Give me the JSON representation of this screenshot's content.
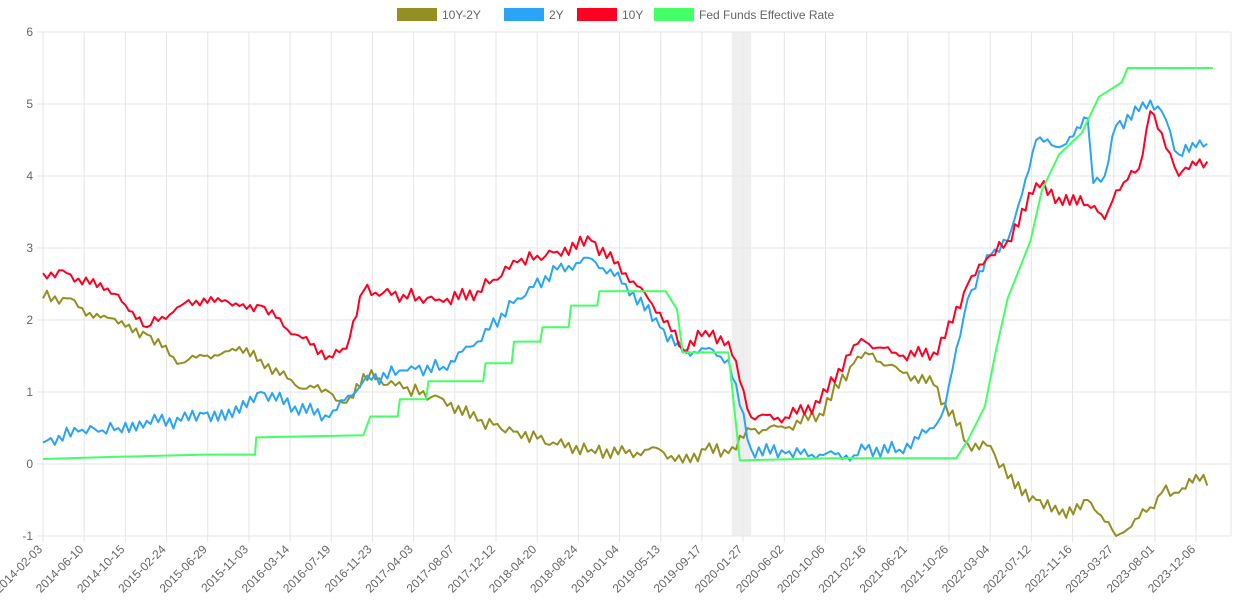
{
  "chart_data": {
    "type": "line",
    "title": "",
    "xlabel": "",
    "ylabel": "",
    "ylim": [
      -1,
      6
    ],
    "y_ticks": [
      "6",
      "5",
      "4",
      "3",
      "2",
      "1",
      "0",
      "-1"
    ],
    "x_tick_labels": [
      "2014-02-03",
      "2014-06-10",
      "2014-10-15",
      "2015-02-24",
      "2015-06-29",
      "2015-11-03",
      "2016-03-14",
      "2016-07-19",
      "2016-11-23",
      "2017-04-03",
      "2017-08-07",
      "2017-12-12",
      "2018-04-20",
      "2018-08-24",
      "2019-01-04",
      "2019-05-13",
      "2019-09-17",
      "2020-01-27",
      "2020-06-02",
      "2020-10-06",
      "2021-02-16",
      "2021-06-21",
      "2021-10-26",
      "2022-03-04",
      "2022-07-12",
      "2022-11-16",
      "2023-03-27",
      "2023-08-01",
      "2023-12-06"
    ],
    "grid": true,
    "legend_position": "top",
    "shaded_region": [
      "2020-02",
      "2020-04"
    ],
    "series": [
      {
        "name": "10Y-2Y",
        "color": "#948f22",
        "values": [
          [
            2014.09,
            2.3
          ],
          [
            2014.3,
            2.3
          ],
          [
            2014.5,
            2.1
          ],
          [
            2014.75,
            1.95
          ],
          [
            2015.0,
            1.8
          ],
          [
            2015.3,
            1.4
          ],
          [
            2015.5,
            1.5
          ],
          [
            2015.75,
            1.6
          ],
          [
            2016.0,
            1.45
          ],
          [
            2016.3,
            1.1
          ],
          [
            2016.6,
            1.0
          ],
          [
            2016.75,
            0.85
          ],
          [
            2016.9,
            1.25
          ],
          [
            2017.25,
            1.05
          ],
          [
            2017.6,
            0.9
          ],
          [
            2017.9,
            0.6
          ],
          [
            2018.25,
            0.45
          ],
          [
            2018.6,
            0.27
          ],
          [
            2018.9,
            0.2
          ],
          [
            2019.2,
            0.15
          ],
          [
            2019.5,
            0.2
          ],
          [
            2019.7,
            0.02
          ],
          [
            2019.9,
            0.2
          ],
          [
            2020.1,
            0.15
          ],
          [
            2020.3,
            0.48
          ],
          [
            2020.6,
            0.5
          ],
          [
            2020.9,
            0.7
          ],
          [
            2021.2,
            1.4
          ],
          [
            2021.3,
            1.55
          ],
          [
            2021.6,
            1.3
          ],
          [
            2021.9,
            1.1
          ],
          [
            2022.0,
            0.85
          ],
          [
            2022.2,
            0.28
          ],
          [
            2022.4,
            0.25
          ],
          [
            2022.55,
            -0.2
          ],
          [
            2022.8,
            -0.5
          ],
          [
            2023.0,
            -0.7
          ],
          [
            2023.25,
            -0.5
          ],
          [
            2023.4,
            -0.8
          ],
          [
            2023.5,
            -1.0
          ],
          [
            2023.7,
            -0.75
          ],
          [
            2023.8,
            -0.6
          ],
          [
            2023.9,
            -0.4
          ],
          [
            2024.05,
            -0.4
          ],
          [
            2024.2,
            -0.15
          ],
          [
            2024.3,
            -0.3
          ]
        ]
      },
      {
        "name": "2Y",
        "color": "#2aa4f4",
        "values": [
          [
            2014.09,
            0.3
          ],
          [
            2014.4,
            0.45
          ],
          [
            2014.75,
            0.5
          ],
          [
            2015.0,
            0.6
          ],
          [
            2015.3,
            0.6
          ],
          [
            2015.5,
            0.7
          ],
          [
            2015.75,
            0.65
          ],
          [
            2016.0,
            1.0
          ],
          [
            2016.3,
            0.8
          ],
          [
            2016.6,
            0.65
          ],
          [
            2016.9,
            1.15
          ],
          [
            2017.25,
            1.3
          ],
          [
            2017.6,
            1.35
          ],
          [
            2017.9,
            1.7
          ],
          [
            2018.25,
            2.3
          ],
          [
            2018.6,
            2.7
          ],
          [
            2018.9,
            2.85
          ],
          [
            2019.2,
            2.5
          ],
          [
            2019.5,
            1.9
          ],
          [
            2019.7,
            1.55
          ],
          [
            2019.9,
            1.6
          ],
          [
            2020.1,
            1.45
          ],
          [
            2020.3,
            0.2
          ],
          [
            2020.6,
            0.15
          ],
          [
            2020.9,
            0.13
          ],
          [
            2021.2,
            0.12
          ],
          [
            2021.3,
            0.2
          ],
          [
            2021.6,
            0.2
          ],
          [
            2021.9,
            0.5
          ],
          [
            2022.0,
            0.8
          ],
          [
            2022.2,
            2.3
          ],
          [
            2022.4,
            2.9
          ],
          [
            2022.55,
            3.1
          ],
          [
            2022.8,
            4.5
          ],
          [
            2023.0,
            4.4
          ],
          [
            2023.25,
            4.8
          ],
          [
            2023.3,
            3.9
          ],
          [
            2023.4,
            4.0
          ],
          [
            2023.5,
            4.7
          ],
          [
            2023.7,
            4.9
          ],
          [
            2023.8,
            5.05
          ],
          [
            2023.9,
            4.9
          ],
          [
            2024.05,
            4.3
          ],
          [
            2024.2,
            4.4
          ],
          [
            2024.3,
            4.45
          ]
        ]
      },
      {
        "name": "10Y",
        "color": "#ff0022",
        "values": [
          [
            2014.09,
            2.65
          ],
          [
            2014.3,
            2.65
          ],
          [
            2014.5,
            2.5
          ],
          [
            2014.75,
            2.35
          ],
          [
            2015.0,
            1.9
          ],
          [
            2015.3,
            2.2
          ],
          [
            2015.5,
            2.3
          ],
          [
            2015.75,
            2.2
          ],
          [
            2016.0,
            2.2
          ],
          [
            2016.3,
            1.8
          ],
          [
            2016.6,
            1.5
          ],
          [
            2016.75,
            1.6
          ],
          [
            2016.9,
            2.4
          ],
          [
            2017.25,
            2.35
          ],
          [
            2017.6,
            2.25
          ],
          [
            2017.9,
            2.4
          ],
          [
            2018.25,
            2.8
          ],
          [
            2018.6,
            2.95
          ],
          [
            2018.9,
            3.1
          ],
          [
            2019.2,
            2.65
          ],
          [
            2019.5,
            2.1
          ],
          [
            2019.7,
            1.6
          ],
          [
            2019.9,
            1.85
          ],
          [
            2020.1,
            1.7
          ],
          [
            2020.3,
            0.65
          ],
          [
            2020.6,
            0.65
          ],
          [
            2020.9,
            0.85
          ],
          [
            2021.2,
            1.65
          ],
          [
            2021.3,
            1.7
          ],
          [
            2021.6,
            1.5
          ],
          [
            2021.9,
            1.55
          ],
          [
            2022.0,
            1.75
          ],
          [
            2022.2,
            2.5
          ],
          [
            2022.4,
            2.9
          ],
          [
            2022.55,
            3.1
          ],
          [
            2022.8,
            3.9
          ],
          [
            2023.0,
            3.7
          ],
          [
            2023.25,
            3.6
          ],
          [
            2023.4,
            3.4
          ],
          [
            2023.5,
            3.8
          ],
          [
            2023.7,
            4.1
          ],
          [
            2023.8,
            4.9
          ],
          [
            2023.9,
            4.6
          ],
          [
            2024.05,
            4.0
          ],
          [
            2024.2,
            4.15
          ],
          [
            2024.3,
            4.2
          ]
        ]
      },
      {
        "name": "Fed Funds Effective Rate",
        "color": "#44ff66",
        "values": [
          [
            2014.09,
            0.07
          ],
          [
            2014.75,
            0.1
          ],
          [
            2015.5,
            0.13
          ],
          [
            2015.95,
            0.13
          ],
          [
            2015.96,
            0.37
          ],
          [
            2016.9,
            0.4
          ],
          [
            2016.96,
            0.66
          ],
          [
            2017.2,
            0.66
          ],
          [
            2017.22,
            0.9
          ],
          [
            2017.45,
            0.9
          ],
          [
            2017.47,
            1.15
          ],
          [
            2017.95,
            1.15
          ],
          [
            2017.97,
            1.4
          ],
          [
            2018.2,
            1.4
          ],
          [
            2018.22,
            1.7
          ],
          [
            2018.45,
            1.7
          ],
          [
            2018.47,
            1.9
          ],
          [
            2018.7,
            1.9
          ],
          [
            2018.72,
            2.2
          ],
          [
            2018.95,
            2.2
          ],
          [
            2018.97,
            2.4
          ],
          [
            2019.55,
            2.4
          ],
          [
            2019.57,
            2.35
          ],
          [
            2019.65,
            2.15
          ],
          [
            2019.7,
            1.55
          ],
          [
            2020.1,
            1.55
          ],
          [
            2020.2,
            0.05
          ],
          [
            2021.0,
            0.08
          ],
          [
            2022.1,
            0.08
          ],
          [
            2022.2,
            0.33
          ],
          [
            2022.35,
            0.8
          ],
          [
            2022.45,
            1.6
          ],
          [
            2022.55,
            2.3
          ],
          [
            2022.75,
            3.1
          ],
          [
            2022.85,
            3.8
          ],
          [
            2023.0,
            4.3
          ],
          [
            2023.2,
            4.6
          ],
          [
            2023.35,
            5.1
          ],
          [
            2023.55,
            5.3
          ],
          [
            2023.6,
            5.5
          ],
          [
            2024.35,
            5.5
          ]
        ]
      }
    ]
  }
}
